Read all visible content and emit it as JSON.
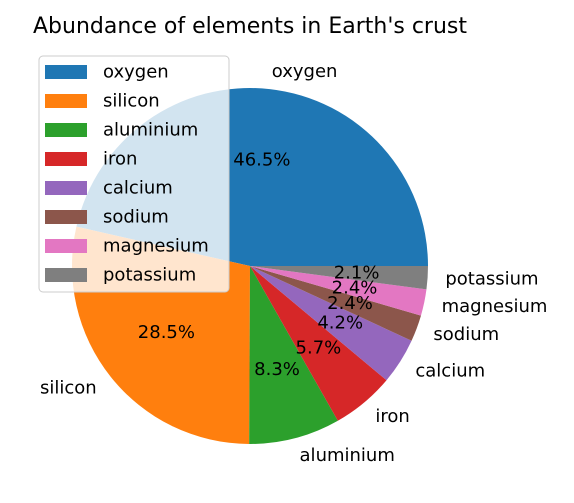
{
  "chart_data": {
    "type": "pie",
    "title": "Abundance of elements in Earth's crust",
    "categories": [
      "oxygen",
      "silicon",
      "aluminium",
      "iron",
      "calcium",
      "sodium",
      "magnesium",
      "potassium"
    ],
    "values": [
      46.5,
      28.5,
      8.3,
      5.7,
      4.2,
      2.4,
      2.4,
      2.1
    ],
    "percent_labels": [
      "46.5%",
      "28.5%",
      "8.3%",
      "5.7%",
      "4.2%",
      "2.4%",
      "2.4%",
      "2.1%"
    ],
    "colors": [
      "#1f77b4",
      "#ff7f0e",
      "#2ca02c",
      "#d62728",
      "#9467bd",
      "#8c564b",
      "#e377c2",
      "#7f7f7f"
    ],
    "start_angle_deg": 0,
    "direction": "counterclockwise",
    "legend": {
      "placement": "upper-left",
      "entries": [
        "oxygen",
        "silicon",
        "aluminium",
        "iron",
        "calcium",
        "sodium",
        "magnesium",
        "potassium"
      ]
    }
  }
}
